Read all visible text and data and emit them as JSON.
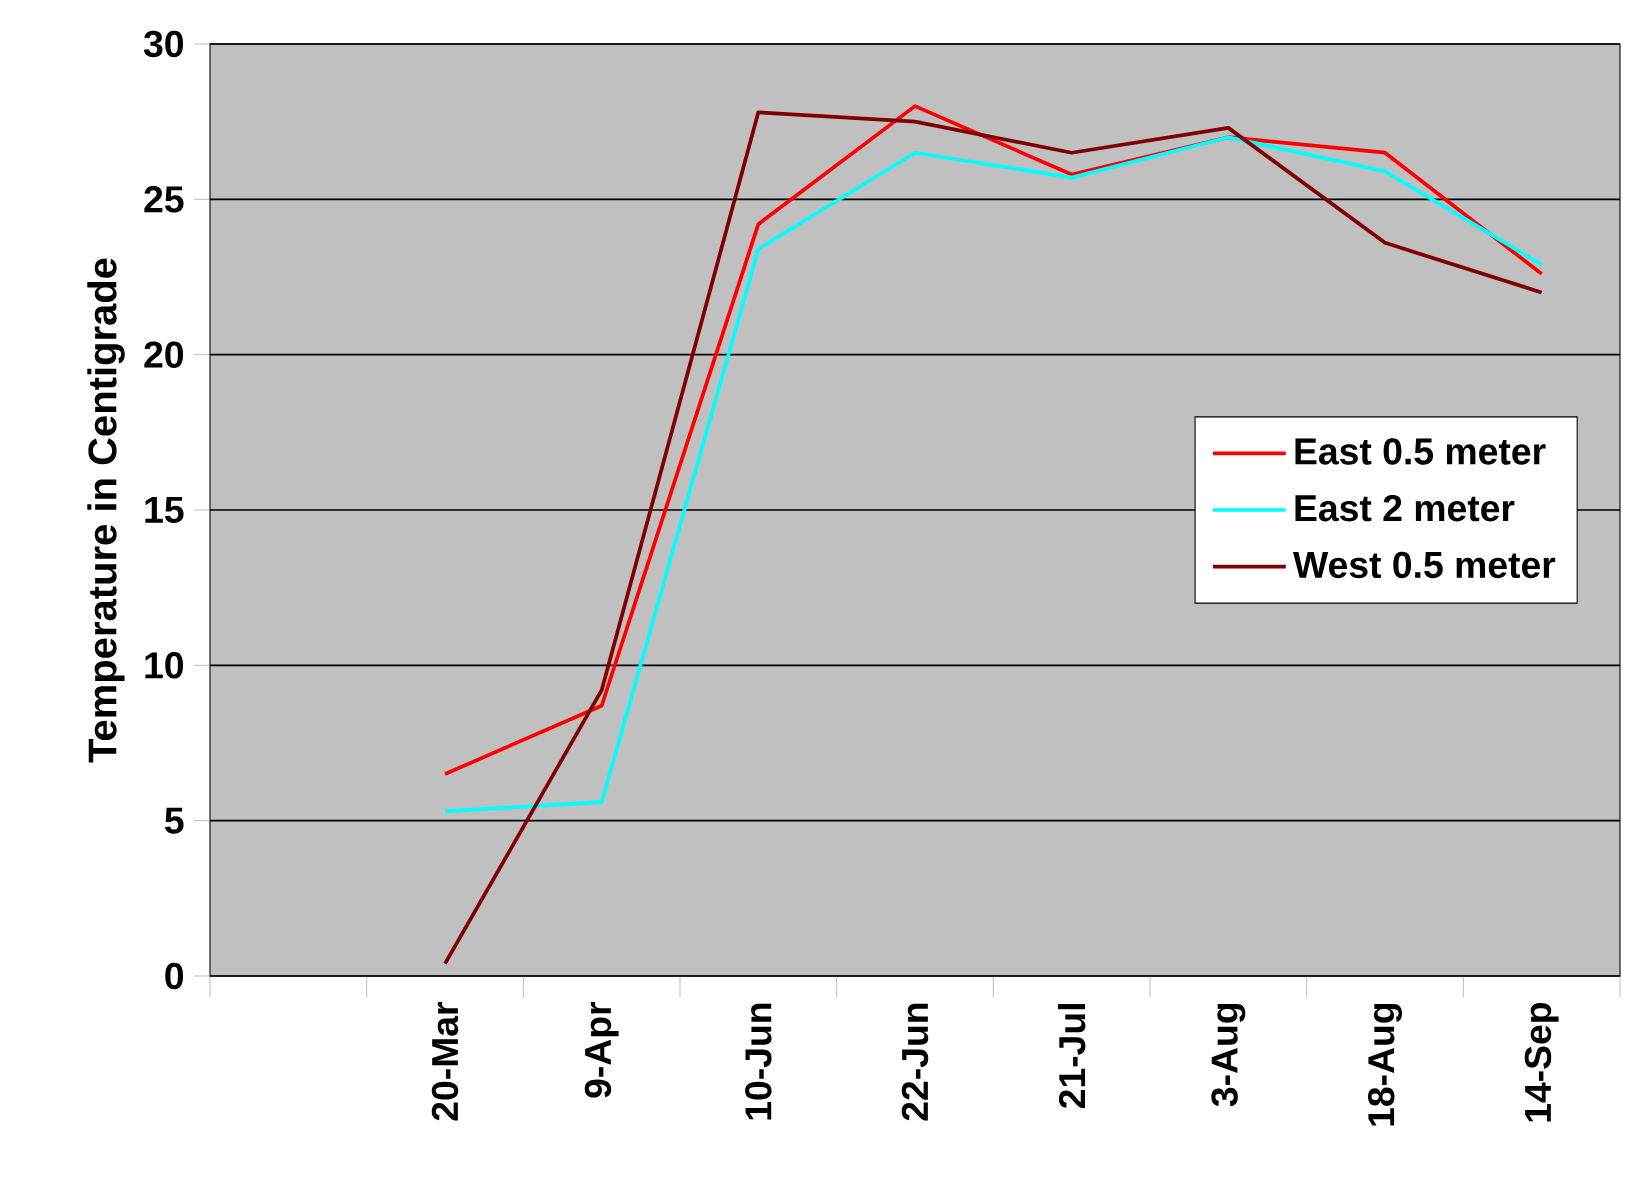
{
  "chart_data": {
    "type": "line",
    "ylabel": "Temperature in Centigrade",
    "categories": [
      null,
      "20-Mar",
      "9-Apr",
      "10-Jun",
      "22-Jun",
      "21-Jul",
      "3-Aug",
      "18-Aug",
      "14-Sep"
    ],
    "series": [
      {
        "name": "East 0.5 meter",
        "color": "#ff0000",
        "values": [
          null,
          6.5,
          8.7,
          24.2,
          28.0,
          25.8,
          27.0,
          26.5,
          22.6
        ]
      },
      {
        "name": "East 2 meter",
        "color": "#00ffff",
        "values": [
          null,
          5.3,
          5.6,
          23.4,
          26.5,
          25.7,
          27.0,
          25.9,
          22.9
        ]
      },
      {
        "name": "West 0.5 meter",
        "color": "#800000",
        "values": [
          null,
          0.4,
          9.2,
          27.8,
          27.5,
          26.5,
          27.3,
          23.6,
          22.0
        ]
      }
    ],
    "ylim": [
      0,
      30
    ],
    "yticks": [
      0,
      5,
      10,
      15,
      20,
      25,
      30
    ],
    "grid": "y",
    "legend": "right",
    "marker": "none",
    "line_style": "solid"
  }
}
